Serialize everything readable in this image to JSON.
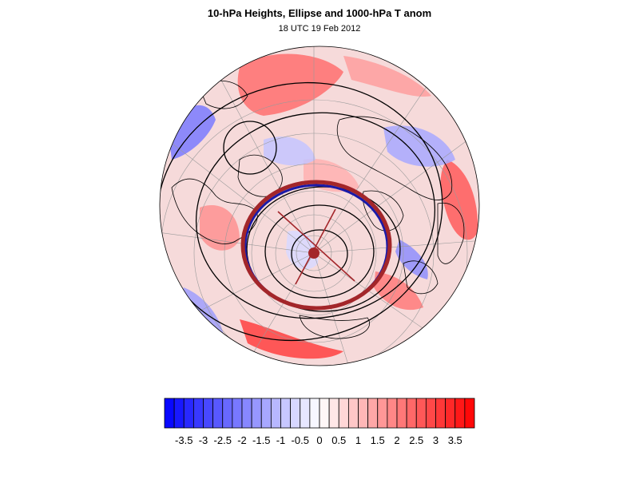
{
  "figure": {
    "title": "10-hPa Heights, Ellipse and 1000-hPa T anom",
    "subtitle": "18 UTC 19 Feb 2012"
  },
  "colors": {
    "ellipse": "#a3262a",
    "ellipse_inner_edge": "#1a1aa8",
    "contour": "#000000",
    "graticule": "#9a9a9a",
    "negative_max": "#0000ff",
    "positive_max": "#ff0000"
  },
  "colorbar": {
    "levels": [
      -4,
      -3.75,
      -3.5,
      -3.25,
      -3,
      -2.75,
      -2.5,
      -2.25,
      -2,
      -1.75,
      -1.5,
      -1.25,
      -1,
      -0.75,
      -0.5,
      -0.25,
      0,
      0.25,
      0.5,
      0.75,
      1,
      1.25,
      1.5,
      1.75,
      2,
      2.25,
      2.5,
      2.75,
      3,
      3.25,
      3.5,
      3.75,
      4
    ],
    "tick_labels": [
      "-3.5",
      "-3",
      "-2.5",
      "-2",
      "-1.5",
      "-1",
      "-0.5",
      "0",
      "0.5",
      "1",
      "1.5",
      "2",
      "2.5",
      "3",
      "3.5"
    ]
  }
}
